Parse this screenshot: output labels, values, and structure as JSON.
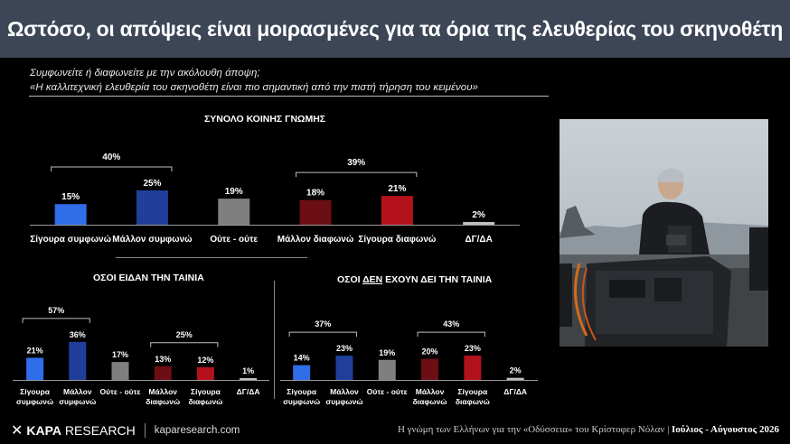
{
  "title": "Ωστόσο, οι απόψεις είναι μοιρασμένες για τα όρια της ελευθερίας του σκηνοθέτη",
  "question": {
    "line1": "Συμφωνείτε ή διαφωνείτε με την ακόλουθη άποψη;",
    "line2": "«Η καλλιτεχνική ελευθερία του σκηνοθέτη είναι πιο σημαντική από την πιστή τήρηση του κειμένου»"
  },
  "colors": {
    "strong_agree": "#2f6ee8",
    "agree": "#1f3f9a",
    "neutral": "#7f7f7f",
    "disagree": "#6b0f14",
    "strong_disagree": "#b3121c",
    "na": "#bfbfbf"
  },
  "chart_data": [
    {
      "type": "bar",
      "title": "ΣΥΝΟΛΟ ΚΟΙΝΗΣ ΓΝΩΜΗΣ",
      "categories": [
        "Σίγουρα συμφωνώ",
        "Μάλλον συμφωνώ",
        "Ούτε - ούτε",
        "Μάλλον διαφωνώ",
        "Σίγουρα διαφωνώ",
        "ΔΓ/ΔΑ"
      ],
      "values": [
        15,
        25,
        19,
        18,
        21,
        2
      ],
      "value_labels": [
        "15%",
        "25%",
        "19%",
        "18%",
        "21%",
        "2%"
      ],
      "group_totals": [
        {
          "from": 0,
          "to": 1,
          "value": 40,
          "label": "40%"
        },
        {
          "from": 3,
          "to": 4,
          "value": 39,
          "label": "39%"
        }
      ]
    },
    {
      "type": "bar",
      "title": "ΟΣΟΙ ΕΙΔΑΝ ΤΗΝ ΤΑΙΝΙΑ",
      "categories": [
        "Σίγουρα συμφωνώ",
        "Μάλλον συμφωνώ",
        "Ούτε - ούτε",
        "Μάλλον διαφωνώ",
        "Σίγουρα διαφωνώ",
        "ΔΓ/ΔΑ"
      ],
      "values": [
        21,
        36,
        17,
        13,
        12,
        1
      ],
      "value_labels": [
        "21%",
        "36%",
        "17%",
        "13%",
        "12%",
        "1%"
      ],
      "group_totals": [
        {
          "from": 0,
          "to": 1,
          "value": 57,
          "label": "57%"
        },
        {
          "from": 3,
          "to": 4,
          "value": 25,
          "label": "25%"
        }
      ]
    },
    {
      "type": "bar",
      "title_parts": [
        "ΟΣΟΙ ",
        "ΔΕΝ",
        " ΕΧΟΥΝ ΔΕΙ ΤΗΝ ΤΑΙΝΙΑ"
      ],
      "categories": [
        "Σίγουρα συμφωνώ",
        "Μάλλον συμφωνώ",
        "Ούτε - ούτε",
        "Μάλλον διαφωνώ",
        "Σίγουρα διαφωνώ",
        "ΔΓ/ΔΑ"
      ],
      "values": [
        14,
        23,
        19,
        20,
        23,
        2
      ],
      "value_labels": [
        "14%",
        "23%",
        "19%",
        "20%",
        "23%",
        "2%"
      ],
      "group_totals": [
        {
          "from": 0,
          "to": 1,
          "value": 37,
          "label": "37%"
        },
        {
          "from": 3,
          "to": 4,
          "value": 43,
          "label": "43%"
        }
      ]
    }
  ],
  "footer": {
    "brand_bold": "KAPA",
    "brand_rest": " RESEARCH",
    "website": "kaparesearch.com",
    "caption": "Η γνώμη των Ελλήνων για την «Οδύσσεια» του Κρίστοφερ Νόλαν | ",
    "date": "Ιούλιος - Αύγουστος 2026"
  }
}
